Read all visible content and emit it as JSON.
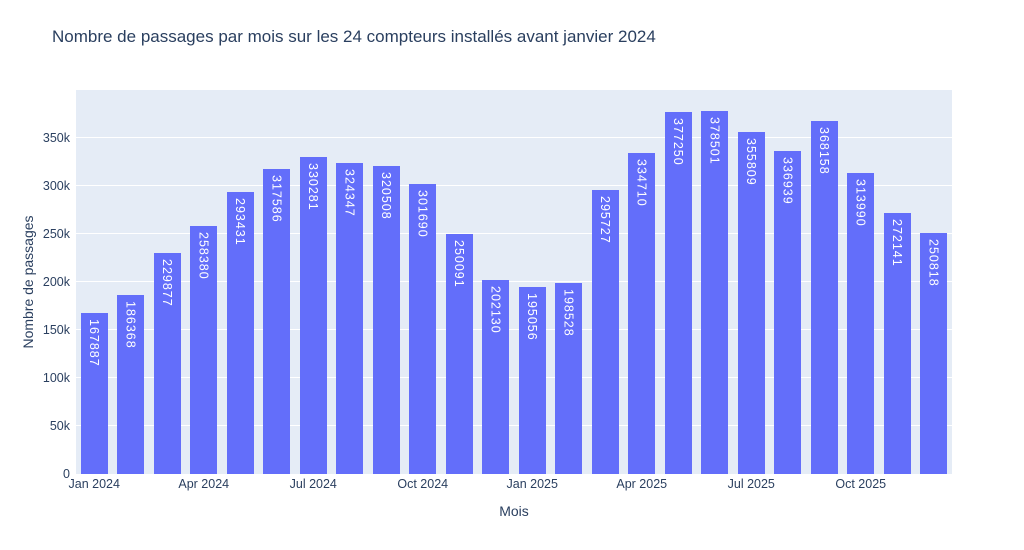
{
  "chart_data": {
    "type": "bar",
    "title": "Nombre de passages par mois sur les 24 compteurs installés avant janvier 2024",
    "xlabel": "Mois",
    "ylabel": "Nombre de passages",
    "categories": [
      "Jan 2024",
      "Feb 2024",
      "Mar 2024",
      "Apr 2024",
      "May 2024",
      "Jun 2024",
      "Jul 2024",
      "Aug 2024",
      "Sep 2024",
      "Oct 2024",
      "Nov 2024",
      "Dec 2024",
      "Jan 2025",
      "Feb 2025",
      "Mar 2025",
      "Apr 2025",
      "May 2025",
      "Jun 2025",
      "Jul 2025",
      "Aug 2025",
      "Sep 2025",
      "Oct 2025",
      "Nov 2025",
      "Dec 2025"
    ],
    "values": [
      167887,
      186368,
      229877,
      258380,
      293431,
      317586,
      330281,
      324347,
      320508,
      301690,
      250091,
      202130,
      195056,
      198528,
      295727,
      334710,
      377250,
      378501,
      355809,
      336939,
      368158,
      313990,
      272141,
      250818
    ],
    "ylim": [
      0,
      400000
    ],
    "yticks": [
      {
        "value": 0,
        "label": "0"
      },
      {
        "value": 50000,
        "label": "50k"
      },
      {
        "value": 100000,
        "label": "100k"
      },
      {
        "value": 150000,
        "label": "150k"
      },
      {
        "value": 200000,
        "label": "200k"
      },
      {
        "value": 250000,
        "label": "250k"
      },
      {
        "value": 300000,
        "label": "300k"
      },
      {
        "value": 350000,
        "label": "350k"
      }
    ],
    "xticks": [
      {
        "index": 0,
        "label": "Jan 2024"
      },
      {
        "index": 3,
        "label": "Apr 2024"
      },
      {
        "index": 6,
        "label": "Jul 2024"
      },
      {
        "index": 9,
        "label": "Oct 2024"
      },
      {
        "index": 12,
        "label": "Jan 2025"
      },
      {
        "index": 15,
        "label": "Apr 2025"
      },
      {
        "index": 18,
        "label": "Jul 2025"
      },
      {
        "index": 21,
        "label": "Oct 2025"
      }
    ],
    "grid": "horizontal-white-behind-bars",
    "legend": null,
    "colors": {
      "bar": "#636EFA",
      "plot_background": "#E5ECF6",
      "gridline": "#FFFFFF",
      "text": "#2A3F5F",
      "bar_label_text": "#FFFFFF"
    }
  }
}
